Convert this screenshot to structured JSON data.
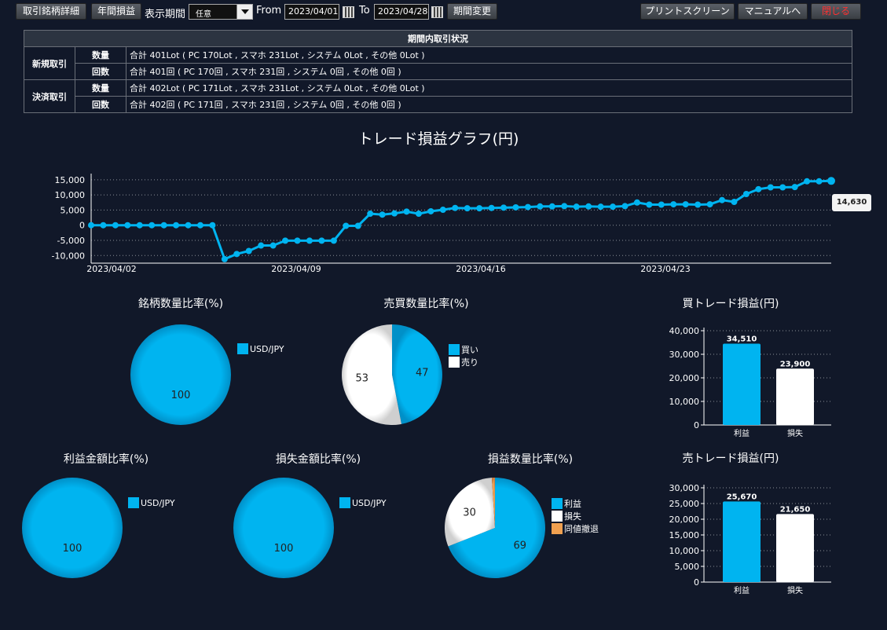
{
  "toolbar": {
    "detail_btn": "取引銘柄詳細",
    "annual_btn": "年間損益",
    "period_label": "表示期間",
    "period_select": "任意",
    "from_label": "From",
    "from_date": "2023/04/01",
    "to_label": "To",
    "to_date": "2023/04/28",
    "change_btn": "期間変更",
    "print_btn": "プリントスクリーン",
    "manual_btn": "マニュアルへ",
    "close_btn": "閉じる"
  },
  "status_table": {
    "title": "期間内取引状況",
    "new_label": "新規取引",
    "close_label": "決済取引",
    "qty_label": "数量",
    "count_label": "回数",
    "new_qty": "合計 401Lot ( PC 170Lot , スマホ 231Lot , システム 0Lot , その他 0Lot )",
    "new_count": "合計 401回 ( PC 170回 , スマホ 231回 , システム 0回 , その他 0回 )",
    "close_qty": "合計 402Lot ( PC 171Lot , スマホ 231Lot , システム 0Lot , その他 0Lot )",
    "close_count": "合計 402回 ( PC 171回 , スマホ 231回 , システム 0回 , その他 0回 )"
  },
  "colors": {
    "accent": "#00b4f0",
    "white": "#ffffff",
    "orange": "#f0a050"
  },
  "chart_data": [
    {
      "type": "line",
      "title": "トレード損益グラフ(円)",
      "tooltip": "14,630",
      "x_ticks": [
        "2023/04/02",
        "2023/04/09",
        "2023/04/16",
        "2023/04/23"
      ],
      "y_ticks": [
        "15,000",
        "10,000",
        "5,000",
        "0",
        "-5,000",
        "-10,000"
      ],
      "ylim": [
        -12000,
        16000
      ],
      "grid": true,
      "values": [
        0,
        0,
        0,
        0,
        0,
        0,
        0,
        0,
        0,
        0,
        0,
        -11200,
        -9500,
        -8500,
        -6700,
        -6700,
        -5100,
        -5100,
        -5100,
        -5100,
        -5100,
        -200,
        -200,
        3800,
        3500,
        3900,
        4500,
        3800,
        4600,
        5100,
        5700,
        5600,
        5600,
        5700,
        5800,
        5900,
        6000,
        6200,
        6200,
        6300,
        6100,
        6200,
        6100,
        6100,
        6300,
        7500,
        6800,
        6800,
        6900,
        6900,
        6800,
        6900,
        8300,
        7700,
        10300,
        11900,
        12500,
        12500,
        12600,
        14500,
        14500,
        14630
      ]
    },
    {
      "type": "pie",
      "title": "銘柄数量比率(%)",
      "categories": [
        "USD/JPY"
      ],
      "values": [
        100
      ],
      "legend": "right"
    },
    {
      "type": "pie",
      "title": "売買数量比率(%)",
      "categories": [
        "買い",
        "売り"
      ],
      "values": [
        47,
        53
      ],
      "legend": "right"
    },
    {
      "type": "bar",
      "title": "買トレード損益(円)",
      "categories": [
        "利益",
        "損失"
      ],
      "values": [
        34510,
        23900
      ],
      "value_labels": [
        "34,510",
        "23,900"
      ],
      "y_ticks": [
        "40,000",
        "30,000",
        "20,000",
        "10,000",
        "0"
      ],
      "ylim": [
        0,
        40000
      ]
    },
    {
      "type": "pie",
      "title": "利益金額比率(%)",
      "categories": [
        "USD/JPY"
      ],
      "values": [
        100
      ],
      "legend": "right"
    },
    {
      "type": "pie",
      "title": "損失金額比率(%)",
      "categories": [
        "USD/JPY"
      ],
      "values": [
        100
      ],
      "legend": "right"
    },
    {
      "type": "pie",
      "title": "損益数量比率(%)",
      "categories": [
        "利益",
        "損失",
        "同値撤退"
      ],
      "values": [
        69,
        30,
        1
      ],
      "value_labels": [
        "69",
        "30",
        ""
      ],
      "legend": "right"
    },
    {
      "type": "bar",
      "title": "売トレード損益(円)",
      "categories": [
        "利益",
        "損失"
      ],
      "values": [
        25670,
        21650
      ],
      "value_labels": [
        "25,670",
        "21,650"
      ],
      "y_ticks": [
        "30,000",
        "25,000",
        "20,000",
        "15,000",
        "10,000",
        "5,000",
        "0"
      ],
      "ylim": [
        0,
        30000
      ]
    }
  ]
}
